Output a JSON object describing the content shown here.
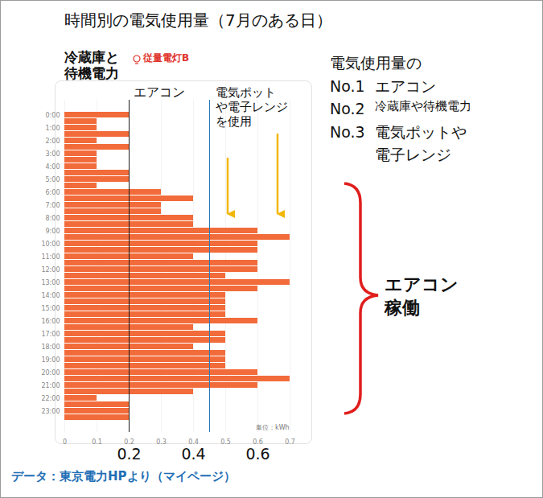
{
  "chart_data": {
    "type": "bar",
    "orientation": "horizontal",
    "title": "時間別の電気使用量（7月のある日）",
    "subtitle": "従量電灯B",
    "categories": [
      "0:00",
      null,
      "1:00",
      null,
      "2:00",
      null,
      "3:00",
      null,
      "4:00",
      null,
      "5:00",
      null,
      "6:00",
      null,
      "7:00",
      null,
      "8:00",
      null,
      "9:00",
      null,
      "10:00",
      null,
      "11:00",
      null,
      "12:00",
      null,
      "13:00",
      null,
      "14:00",
      null,
      "15:00",
      null,
      "16:00",
      null,
      "17:00",
      null,
      "18:00",
      null,
      "19:00",
      null,
      "20:00",
      null,
      "21:00",
      null,
      "22:00",
      null,
      "23:00",
      null
    ],
    "values": [
      0.2,
      0.1,
      0.1,
      0.2,
      0.1,
      0.2,
      0.1,
      0.1,
      0.1,
      0.2,
      0.2,
      0.1,
      0.3,
      0.4,
      0.3,
      0.3,
      0.4,
      0.4,
      0.6,
      0.7,
      0.6,
      0.6,
      0.4,
      0.6,
      0.6,
      0.5,
      0.7,
      0.6,
      0.5,
      0.5,
      0.5,
      0.5,
      0.6,
      0.4,
      0.5,
      0.5,
      0.4,
      0.5,
      0.5,
      0.5,
      0.6,
      0.7,
      0.6,
      0.4,
      0.1,
      0.2,
      0.2,
      0.2
    ],
    "color": "#f26b3a",
    "xlim": [
      0,
      0.7
    ],
    "xticks": [
      0,
      0.1,
      0.2,
      0.3,
      0.4,
      0.5,
      0.6,
      0.7
    ],
    "secondary_xticks": [
      0.2,
      0.4,
      0.6
    ],
    "grid": true,
    "unit_label": "単位：kWh",
    "dividers": [
      {
        "value": 0.2,
        "color": "#1a1a1a"
      },
      {
        "value": 0.45,
        "color": "#2a7ab8"
      }
    ],
    "group_labels": [
      "冷蔵庫と\n待機電力",
      "エアコン",
      "電気ポット\nや電子レンジ\nを使用"
    ],
    "ranking_title": "電気使用量の",
    "ranking": [
      {
        "rank": "No.1",
        "label": "エアコン"
      },
      {
        "rank": "No.2",
        "label": "冷蔵庫や待機電力"
      },
      {
        "rank": "No.3",
        "label": "電気ポットや\n電子レンジ"
      }
    ],
    "brace_label": "エアコン\n稼働",
    "source": "データ：東京電力HPより（マイページ）"
  }
}
